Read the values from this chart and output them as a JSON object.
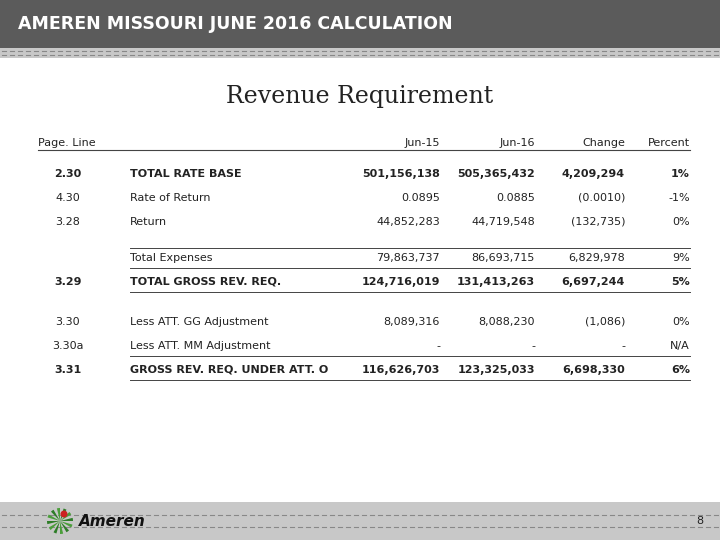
{
  "header_bg": "#5a5a5a",
  "header_text": "AMEREN MISSOURI JUNE 2016 CALCULATION",
  "header_text_color": "#ffffff",
  "title": "Revenue Requirement",
  "col_headers": [
    "Page. Line",
    "Jun-15",
    "Jun-16",
    "Change",
    "Percent"
  ],
  "rows": [
    {
      "page_line": "2.30",
      "desc": "TOTAL RATE BASE",
      "jun15": "501,156,138",
      "jun16": "505,365,432",
      "change": "4,209,294",
      "pct": "1%",
      "bold": true
    },
    {
      "page_line": "4.30",
      "desc": "Rate of Return",
      "jun15": "0.0895",
      "jun16": "0.0885",
      "change": "(0.0010)",
      "pct": "-1%",
      "bold": false
    },
    {
      "page_line": "3.28",
      "desc": "Return",
      "jun15": "44,852,283",
      "jun16": "44,719,548",
      "change": "(132,735)",
      "pct": "0%",
      "bold": false
    },
    {
      "page_line": "",
      "desc": "Total Expenses",
      "jun15": "79,863,737",
      "jun16": "86,693,715",
      "change": "6,829,978",
      "pct": "9%",
      "bold": false
    },
    {
      "page_line": "3.29",
      "desc": "TOTAL GROSS REV. REQ.",
      "jun15": "124,716,019",
      "jun16": "131,413,263",
      "change": "6,697,244",
      "pct": "5%",
      "bold": true
    },
    {
      "page_line": "3.30",
      "desc": "Less ATT. GG Adjustment",
      "jun15": "8,089,316",
      "jun16": "8,088,230",
      "change": "(1,086)",
      "pct": "0%",
      "bold": false
    },
    {
      "page_line": "3.30a",
      "desc": "Less ATT. MM Adjustment",
      "jun15": "-",
      "jun16": "-",
      "change": "-",
      "pct": "N/A",
      "bold": false
    },
    {
      "page_line": "3.31",
      "desc": "GROSS REV. REQ. UNDER ATT. O",
      "jun15": "116,626,703",
      "jun16": "123,325,033",
      "change": "6,698,330",
      "pct": "6%",
      "bold": true
    }
  ],
  "page_number": "8",
  "bg_color": "#ffffff",
  "header_bg_color": "#5b5b5b",
  "dotted_bg_color": "#c8c8c8",
  "line_color": "#444444",
  "text_color": "#222222"
}
